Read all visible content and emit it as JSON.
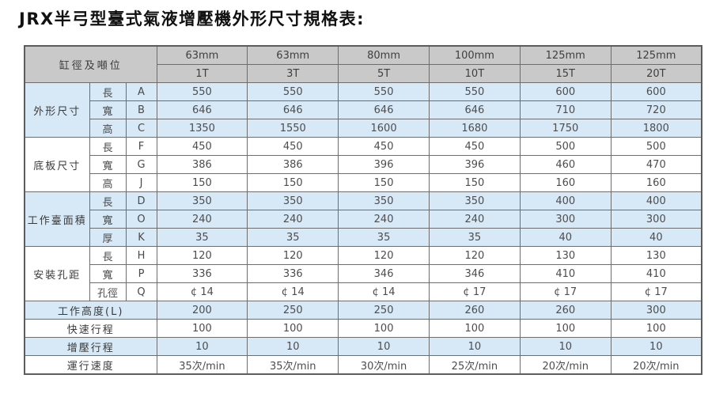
{
  "title": "JRX半弓型臺式氣液增壓機外形尺寸規格表:",
  "colors": {
    "header_bg": "#c9c9c9",
    "row_blue": "#d7e9f7",
    "row_white": "#ffffff",
    "border": "#6d6d6d",
    "value_text": "#4d4d4d",
    "label_text": "#3a3a3a"
  },
  "table": {
    "corner_label": "缸徑及噸位",
    "columns": [
      {
        "diameter": "63mm",
        "tonnage": "1T"
      },
      {
        "diameter": "63mm",
        "tonnage": "3T"
      },
      {
        "diameter": "80mm",
        "tonnage": "5T"
      },
      {
        "diameter": "100mm",
        "tonnage": "10T"
      },
      {
        "diameter": "125mm",
        "tonnage": "15T"
      },
      {
        "diameter": "125mm",
        "tonnage": "20T"
      }
    ],
    "groups": [
      {
        "label": "外形尺寸",
        "shade": "blue",
        "rows": [
          {
            "dim": "長",
            "code": "A",
            "values": [
              "550",
              "550",
              "550",
              "550",
              "600",
              "600"
            ]
          },
          {
            "dim": "寬",
            "code": "B",
            "values": [
              "646",
              "646",
              "646",
              "646",
              "710",
              "720"
            ]
          },
          {
            "dim": "高",
            "code": "C",
            "values": [
              "1350",
              "1550",
              "1600",
              "1680",
              "1750",
              "1800"
            ]
          }
        ]
      },
      {
        "label": "底板尺寸",
        "shade": "white",
        "rows": [
          {
            "dim": "長",
            "code": "F",
            "values": [
              "450",
              "450",
              "450",
              "450",
              "500",
              "500"
            ]
          },
          {
            "dim": "寬",
            "code": "G",
            "values": [
              "386",
              "386",
              "396",
              "396",
              "460",
              "470"
            ]
          },
          {
            "dim": "高",
            "code": "J",
            "values": [
              "150",
              "150",
              "150",
              "150",
              "160",
              "160"
            ]
          }
        ]
      },
      {
        "label": "工作臺面積",
        "shade": "blue",
        "rows": [
          {
            "dim": "長",
            "code": "D",
            "values": [
              "350",
              "350",
              "350",
              "350",
              "400",
              "400"
            ]
          },
          {
            "dim": "寬",
            "code": "O",
            "values": [
              "240",
              "240",
              "240",
              "240",
              "300",
              "300"
            ]
          },
          {
            "dim": "厚",
            "code": "K",
            "values": [
              "35",
              "35",
              "35",
              "35",
              "40",
              "40"
            ]
          }
        ]
      },
      {
        "label": "安裝孔距",
        "shade": "white",
        "rows": [
          {
            "dim": "長",
            "code": "H",
            "values": [
              "120",
              "120",
              "120",
              "120",
              "130",
              "130"
            ]
          },
          {
            "dim": "寬",
            "code": "P",
            "values": [
              "336",
              "336",
              "346",
              "346",
              "410",
              "410"
            ]
          },
          {
            "dim": "孔徑",
            "code": "Q",
            "values": [
              "¢ 14",
              "¢ 14",
              "¢ 14",
              "¢ 17",
              "¢ 17",
              "¢ 17"
            ]
          }
        ]
      }
    ],
    "summary_rows": [
      {
        "label": "工作高度(L)",
        "shade": "blue",
        "values": [
          "200",
          "250",
          "250",
          "260",
          "260",
          "300"
        ]
      },
      {
        "label": "快速行程",
        "shade": "white",
        "values": [
          "100",
          "100",
          "100",
          "100",
          "100",
          "100"
        ]
      },
      {
        "label": "增壓行程",
        "shade": "blue",
        "values": [
          "10",
          "10",
          "10",
          "10",
          "10",
          "10"
        ]
      },
      {
        "label": "運行速度",
        "shade": "white",
        "values": [
          "35次/min",
          "35次/min",
          "30次/min",
          "25次/min",
          "20次/min",
          "20次/min"
        ]
      }
    ]
  }
}
